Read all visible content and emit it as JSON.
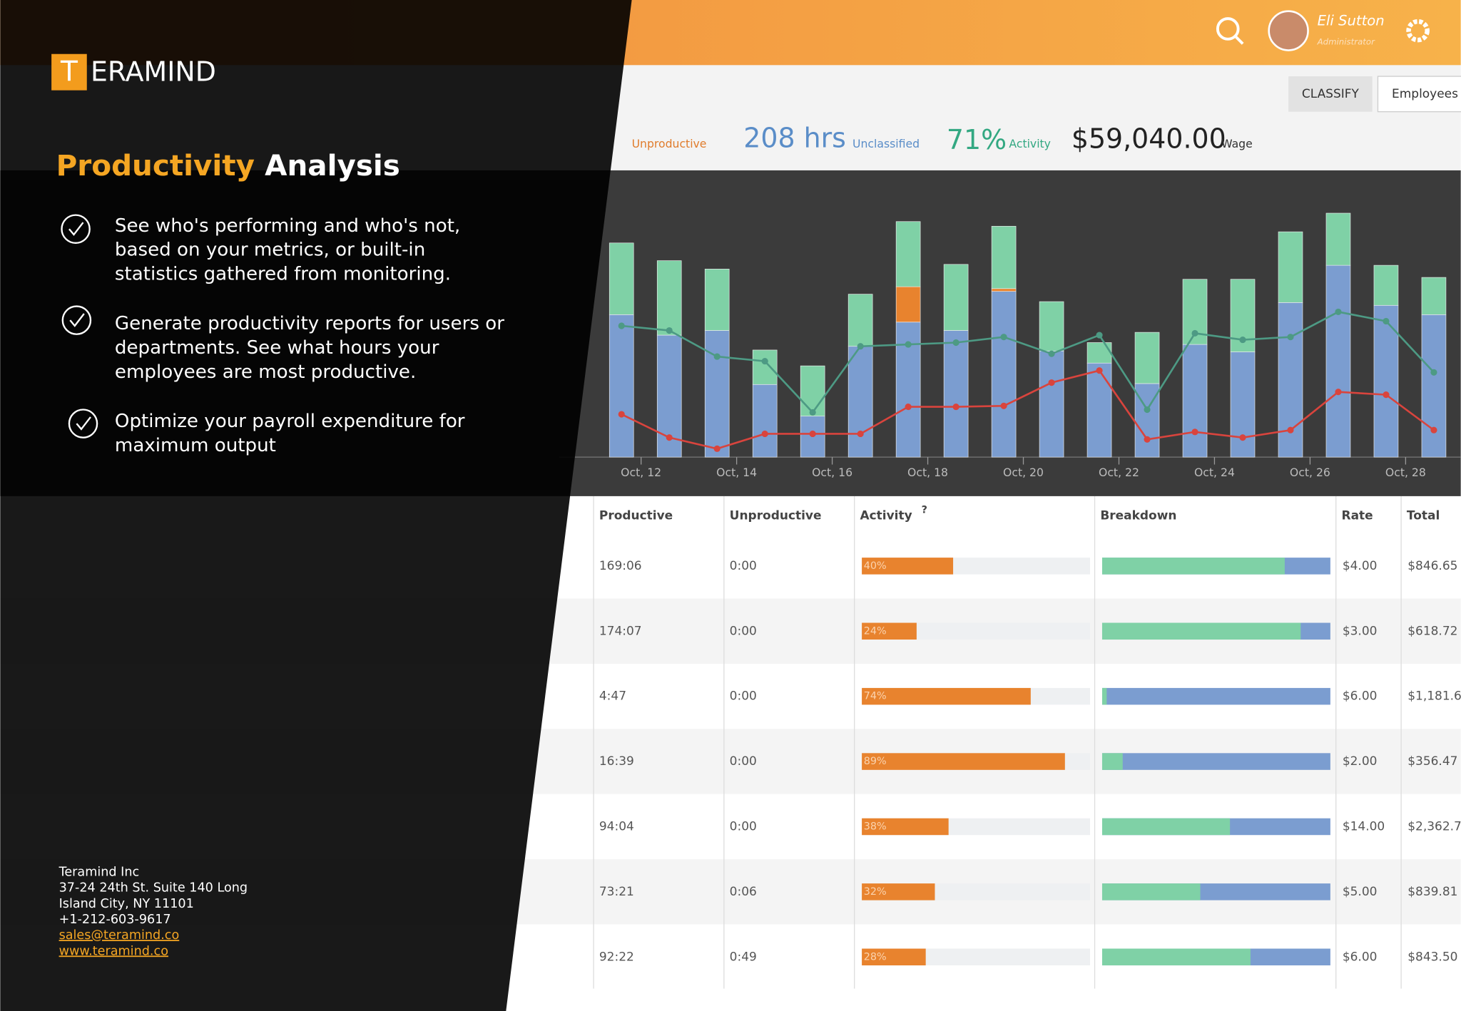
{
  "brand": {
    "logo_letter": "T",
    "logo_rest": "ERAMIND"
  },
  "title": {
    "highlight": "Productivity",
    "rest": " Analysis"
  },
  "bullets": [
    [
      "See who's performing and who's not,",
      "based on your metrics, or built-in",
      "statistics gathered from monitoring."
    ],
    [
      "Generate productivity reports for users or",
      "departments. See what hours your",
      "employees are most productive."
    ],
    [
      "Optimize your payroll expenditure for",
      "maximum output"
    ]
  ],
  "contact": {
    "lines": [
      "Teramind Inc",
      "37-24 24th St. Suite 140 Long",
      "Island City, NY 11101",
      "+1-212-603-9617"
    ],
    "email": "sales@teramind.co",
    "web": "www.teramind.co"
  },
  "dashboard": {
    "user": {
      "name": "Eli Sutton",
      "role": "Administrator"
    },
    "buttons": [
      "CLASSIFY",
      "Employees"
    ],
    "stats": {
      "unproductive_label": "Unproductive",
      "unclassified": "208 hrs",
      "unclassified_label": "Unclassified",
      "activity": "71%",
      "activity_label": "Activity",
      "wage": "$59,040.00",
      "wage_label": "Wage"
    },
    "chart": {
      "categories": [
        "Oct, 12",
        "Oct, 14",
        "Oct, 16",
        "Oct, 18",
        "Oct, 20",
        "Oct, 22",
        "Oct, 24",
        "Oct, 26",
        "Oct, 28"
      ],
      "bars": [
        {
          "productive": 153,
          "unproductive": 0,
          "unclassified": 77
        },
        {
          "productive": 131,
          "unproductive": 0,
          "unclassified": 80
        },
        {
          "productive": 136,
          "unproductive": 0,
          "unclassified": 66
        },
        {
          "productive": 78,
          "unproductive": 0,
          "unclassified": 37
        },
        {
          "productive": 44,
          "unproductive": 0,
          "unclassified": 54
        },
        {
          "productive": 119,
          "unproductive": 0,
          "unclassified": 56
        },
        {
          "productive": 145,
          "unproductive": 38,
          "unclassified": 70
        },
        {
          "productive": 136,
          "unproductive": 0,
          "unclassified": 71
        },
        {
          "productive": 178,
          "unproductive": 3,
          "unclassified": 67
        },
        {
          "productive": 114,
          "unproductive": 0,
          "unclassified": 53
        },
        {
          "productive": 101,
          "unproductive": 0,
          "unclassified": 22
        },
        {
          "productive": 79,
          "unproductive": 0,
          "unclassified": 55
        },
        {
          "productive": 121,
          "unproductive": 0,
          "unclassified": 70
        },
        {
          "productive": 113,
          "unproductive": 0,
          "unclassified": 78
        },
        {
          "productive": 166,
          "unproductive": 0,
          "unclassified": 76
        },
        {
          "productive": 206,
          "unproductive": 0,
          "unclassified": 56
        },
        {
          "productive": 163,
          "unproductive": 0,
          "unclassified": 43
        },
        {
          "productive": 153,
          "unproductive": 0,
          "unclassified": 40
        }
      ],
      "line_green": [
        141,
        136,
        108,
        103,
        48,
        119,
        121,
        123,
        129,
        111,
        131,
        51,
        133,
        126,
        129,
        156,
        146,
        91
      ],
      "line_red": [
        46,
        21,
        9,
        25,
        25,
        25,
        54,
        54,
        55,
        80,
        93,
        19,
        27,
        21,
        29,
        70,
        67,
        29
      ]
    },
    "table": {
      "headers": [
        "Productive",
        "Unproductive",
        "Activity",
        "Breakdown",
        "Rate",
        "Total"
      ],
      "rows": [
        {
          "productive": "169:06",
          "unproductive": "0:00",
          "activity": {
            "value": 40,
            "label": "40%"
          },
          "breakdown": 80,
          "rate": "$4.00",
          "total": "$846.65"
        },
        {
          "productive": "174:07",
          "unproductive": "0:00",
          "activity": {
            "value": 24,
            "label": "24%"
          },
          "breakdown": 87,
          "rate": "$3.00",
          "total": "$618.72"
        },
        {
          "productive": "4:47",
          "unproductive": "0:00",
          "activity": {
            "value": 74,
            "label": "74%"
          },
          "breakdown": 2,
          "rate": "$6.00",
          "total": "$1,181.6"
        },
        {
          "productive": "16:39",
          "unproductive": "0:00",
          "activity": {
            "value": 89,
            "label": "89%"
          },
          "breakdown": 9,
          "rate": "$2.00",
          "total": "$356.47"
        },
        {
          "productive": "94:04",
          "unproductive": "0:00",
          "activity": {
            "value": 38,
            "label": "38%"
          },
          "breakdown": 56,
          "rate": "$14.00",
          "total": "$2,362.7"
        },
        {
          "productive": "73:21",
          "unproductive": "0:06",
          "activity": {
            "value": 32,
            "label": "32%"
          },
          "breakdown": 43,
          "rate": "$5.00",
          "total": "$839.81"
        },
        {
          "productive": "92:22",
          "unproductive": "0:49",
          "activity": {
            "value": 28,
            "label": "28%"
          },
          "breakdown": 65,
          "rate": "$6.00",
          "total": "$843.50"
        }
      ]
    }
  }
}
